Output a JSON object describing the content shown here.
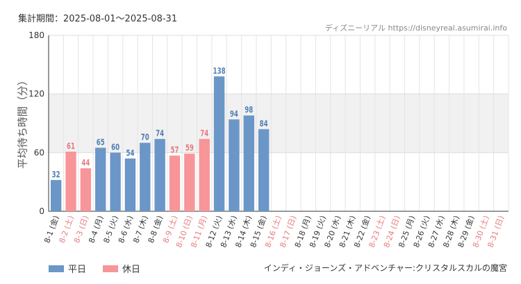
{
  "header": {
    "period": "集計期間：2025-08-01〜2025-08-31",
    "credit": "ディズニーリアル https://disneyreal.asumirai.info"
  },
  "footer": {
    "attraction": "インディ・ジョーンズ・アドベンチャー:クリスタルスカルの魔宮"
  },
  "colors": {
    "weekday": "#6b96c8",
    "holiday": "#f79599",
    "weekday_label": "#4f7fb5",
    "holiday_label": "#e8797e",
    "band": "#f1f1f1"
  },
  "chart_data": {
    "type": "bar",
    "ylabel": "平均待ち時間（分）",
    "ylim": [
      0,
      180
    ],
    "yticks": [
      0,
      60,
      120,
      180
    ],
    "band": [
      60,
      120
    ],
    "grid": true,
    "legend_placement": "bottom-left",
    "legend": [
      {
        "name": "平日",
        "key": "weekday"
      },
      {
        "name": "休日",
        "key": "holiday"
      }
    ],
    "categories": [
      "8-1 (金)",
      "8-2 (土)",
      "8-3 (日)",
      "8-4 (月)",
      "8-5 (火)",
      "8-6 (水)",
      "8-7 (木)",
      "8-8 (金)",
      "8-9 (土)",
      "8-10 (日)",
      "8-11 (月)",
      "8-12 (火)",
      "8-13 (水)",
      "8-14 (木)",
      "8-15 (金)",
      "8-16 (土)",
      "8-17 (日)",
      "8-18 (月)",
      "8-19 (火)",
      "8-20 (水)",
      "8-21 (木)",
      "8-22 (金)",
      "8-23 (土)",
      "8-24 (日)",
      "8-25 (月)",
      "8-26 (火)",
      "8-27 (水)",
      "8-28 (木)",
      "8-29 (金)",
      "8-30 (土)",
      "8-31 (日)"
    ],
    "day_type": [
      "weekday",
      "holiday",
      "holiday",
      "weekday",
      "weekday",
      "weekday",
      "weekday",
      "weekday",
      "holiday",
      "holiday",
      "holiday",
      "weekday",
      "weekday",
      "weekday",
      "weekday",
      "holiday",
      "holiday",
      "weekday",
      "weekday",
      "weekday",
      "weekday",
      "weekday",
      "holiday",
      "holiday",
      "weekday",
      "weekday",
      "weekday",
      "weekday",
      "weekday",
      "holiday",
      "holiday"
    ],
    "values": [
      32,
      61,
      44,
      65,
      60,
      54,
      70,
      74,
      57,
      59,
      74,
      138,
      94,
      98,
      84,
      null,
      null,
      null,
      null,
      null,
      null,
      null,
      null,
      null,
      null,
      null,
      null,
      null,
      null,
      null,
      null
    ]
  }
}
